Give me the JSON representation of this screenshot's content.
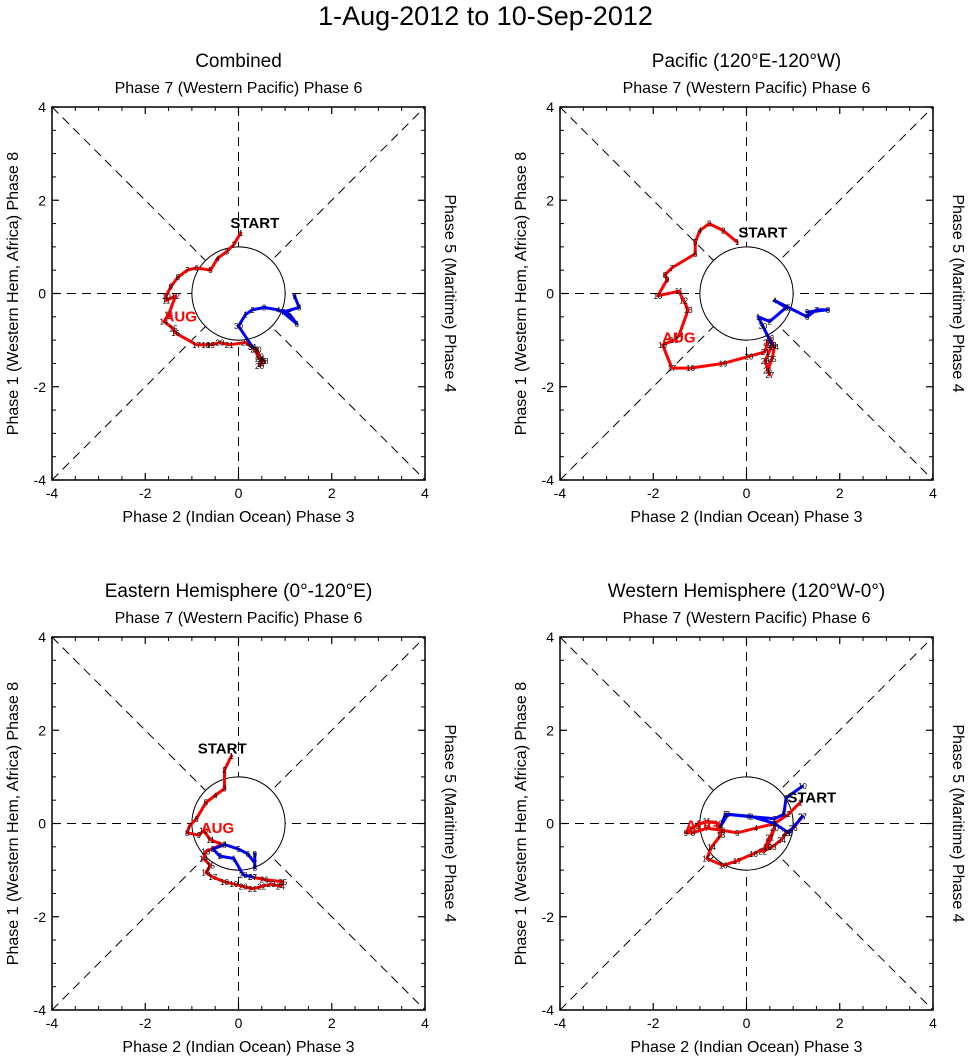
{
  "figure": {
    "title": "1-Aug-2012 to 10-Sep-2012"
  },
  "colors": {
    "august": "#ff0000",
    "september": "#0000ff",
    "axes": "#000000"
  },
  "chart_data": [
    {
      "type": "line",
      "title": "Combined",
      "top_label": "Phase 7 (Western Pacific) Phase 6",
      "bottom_label": "Phase 2 (Indian Ocean) Phase 3",
      "left_label": "Phase 1 (Western Hem, Africa) Phase 8",
      "right_label": "Phase 5 (Maritime) Phase 4",
      "xlim": [
        -4,
        4
      ],
      "ylim": [
        -4,
        4
      ],
      "xticks": [
        -4,
        -2,
        0,
        2,
        4
      ],
      "yticks": [
        -4,
        -2,
        0,
        2,
        4
      ],
      "tick_labels": [
        "-4",
        "-2",
        "0",
        "2",
        "4"
      ],
      "start_label": "START",
      "start_label_pos": [
        0.35,
        1.4
      ],
      "month_label": "AUG",
      "month_label_pos": [
        -1.25,
        -0.6
      ],
      "series": [
        {
          "name": "AUG",
          "color": "#ff0000",
          "x": [
            0.05,
            -0.1,
            -0.25,
            -0.45,
            -0.6,
            -0.9,
            -1.1,
            -1.3,
            -1.45,
            -1.55,
            -1.55,
            -1.35,
            -1.5,
            -1.6,
            -1.4,
            -1.35,
            -0.9,
            -0.7,
            -0.6,
            -0.4,
            -0.2,
            0.15,
            0.35,
            0.45,
            0.5,
            0.45,
            0.5,
            0.55,
            0.45,
            0.4,
            0.3
          ],
          "y": [
            1.3,
            1.05,
            0.9,
            0.75,
            0.5,
            0.55,
            0.5,
            0.35,
            0.15,
            -0.05,
            -0.15,
            -0.05,
            -0.45,
            -0.6,
            -0.75,
            -0.85,
            -1.1,
            -1.1,
            -1.1,
            -1.05,
            -1.1,
            -1.05,
            -1.2,
            -1.4,
            -1.45,
            -1.55,
            -1.5,
            -1.45,
            -1.35,
            -1.2,
            -1.15
          ],
          "point_labels": [
            "1",
            "2",
            "3",
            "4",
            "5",
            "6",
            "7",
            "8",
            "9",
            "10",
            "11",
            "12",
            "13",
            "14",
            "15",
            "16",
            "17",
            "18",
            "19",
            "20",
            "21",
            "22",
            "23",
            "24",
            "25",
            "26",
            "27",
            "28",
            "29",
            "30",
            "31"
          ]
        },
        {
          "name": "SEP",
          "color": "#0000ff",
          "x": [
            0.3,
            0.0,
            0.15,
            0.3,
            0.55,
            0.85,
            1.1,
            1.25,
            0.95,
            1.3,
            1.2
          ],
          "y": [
            -1.15,
            -0.7,
            -0.45,
            -0.35,
            -0.3,
            -0.35,
            -0.45,
            -0.65,
            -0.4,
            -0.3,
            -0.05
          ],
          "point_labels": [
            "31",
            "30",
            "1",
            "2",
            "3",
            "4",
            "5",
            "6",
            "7",
            "8",
            "9"
          ]
        }
      ]
    },
    {
      "type": "line",
      "title": "Pacific (120°E-120°W)",
      "top_label": "Phase 7 (Western Pacific) Phase 6",
      "bottom_label": "Phase 2 (Indian Ocean) Phase 3",
      "left_label": "Phase 1 (Western Hem, Africa) Phase 8",
      "right_label": "Phase 5 (Maritime) Phase 4",
      "xlim": [
        -4,
        4
      ],
      "ylim": [
        -4,
        4
      ],
      "xticks": [
        -4,
        -2,
        0,
        2,
        4
      ],
      "yticks": [
        -4,
        -2,
        0,
        2,
        4
      ],
      "tick_labels": [
        "-4",
        "-2",
        "0",
        "2",
        "4"
      ],
      "start_label": "START",
      "start_label_pos": [
        0.35,
        1.2
      ],
      "month_label": "AUG",
      "month_label_pos": [
        -1.45,
        -1.05
      ],
      "series": [
        {
          "name": "AUG",
          "color": "#ff0000",
          "x": [
            -0.2,
            -0.5,
            -0.8,
            -1.0,
            -1.1,
            -1.1,
            -1.6,
            -1.75,
            -1.7,
            -1.9,
            -1.45,
            -1.35,
            -1.25,
            -1.45,
            -1.55,
            -1.8,
            -1.6,
            -1.2,
            -0.5,
            0.05,
            0.4,
            0.45,
            0.5,
            0.6,
            0.55,
            0.45,
            0.5,
            0.4,
            0.55
          ],
          "y": [
            1.1,
            1.35,
            1.5,
            1.35,
            1.1,
            0.85,
            0.55,
            0.4,
            0.3,
            -0.05,
            0.05,
            -0.15,
            -0.35,
            -0.9,
            -1.0,
            -1.1,
            -1.6,
            -1.6,
            -1.5,
            -1.35,
            -1.25,
            -1.05,
            -0.95,
            -1.15,
            -1.4,
            -1.65,
            -1.75,
            -1.45,
            -1.1
          ],
          "point_labels": [
            "1",
            "2",
            "3",
            "4",
            "5",
            "6",
            "7",
            "8",
            "9",
            "10",
            "11",
            "12",
            "13",
            "14",
            "15",
            "16",
            "17",
            "18",
            "19",
            "20",
            "21",
            "22",
            "23",
            "24",
            "25",
            "26",
            "27",
            "28",
            "29"
          ]
        },
        {
          "name": "SEP",
          "color": "#0000ff",
          "x": [
            0.55,
            0.35,
            0.25,
            0.5,
            0.85,
            0.6,
            0.9,
            1.3,
            1.5,
            1.75,
            1.3
          ],
          "y": [
            -1.1,
            -0.7,
            -0.5,
            -0.6,
            -0.3,
            -0.15,
            -0.3,
            -0.5,
            -0.35,
            -0.35,
            -0.4
          ],
          "point_labels": [
            "29",
            "30",
            "1",
            "2",
            "3",
            "4",
            "5",
            "6",
            "7",
            "8",
            "9"
          ]
        }
      ]
    },
    {
      "type": "line",
      "title": "Eastern Hemisphere (0°-120°E)",
      "top_label": "Phase 7 (Western Pacific) Phase 6",
      "bottom_label": "Phase 2 (Indian Ocean) Phase 3",
      "left_label": "Phase 1 (Western Hem, Africa) Phase 8",
      "right_label": "Phase 5 (Maritime) Phase 4",
      "xlim": [
        -4,
        4
      ],
      "ylim": [
        -4,
        4
      ],
      "xticks": [
        -4,
        -2,
        0,
        2,
        4
      ],
      "yticks": [
        -4,
        -2,
        0,
        2,
        4
      ],
      "tick_labels": [
        "-4",
        "-2",
        "0",
        "2",
        "4"
      ],
      "start_label": "START",
      "start_label_pos": [
        -0.35,
        1.5
      ],
      "month_label": "AUG",
      "month_label_pos": [
        -0.45,
        -0.2
      ],
      "series": [
        {
          "name": "AUG",
          "color": "#ff0000",
          "x": [
            -0.15,
            -0.3,
            -0.3,
            -0.5,
            -0.7,
            -0.9,
            -1.05,
            -1.1,
            -0.85,
            -0.75,
            -0.6,
            -0.35,
            -0.7,
            -0.75,
            -0.6,
            -0.7,
            -0.55,
            -0.3,
            -0.1,
            0.1,
            0.3,
            0.5,
            0.7,
            0.9,
            0.95,
            0.55,
            0.3
          ],
          "y": [
            1.45,
            1.15,
            0.75,
            0.6,
            0.45,
            0.1,
            -0.05,
            -0.2,
            -0.25,
            -0.15,
            -0.35,
            -0.45,
            -0.6,
            -0.75,
            -0.9,
            -1.05,
            -1.15,
            -1.25,
            -1.3,
            -1.35,
            -1.4,
            -1.35,
            -1.3,
            -1.35,
            -1.25,
            -1.2,
            -1.15
          ],
          "point_labels": [
            "1",
            "2",
            "3",
            "4",
            "5",
            "6",
            "7",
            "8",
            "9",
            "10",
            "11",
            "12",
            "13",
            "14",
            "15",
            "16",
            "17",
            "18",
            "19",
            "20",
            "21",
            "22",
            "23",
            "24",
            "25",
            "26",
            "27"
          ]
        },
        {
          "name": "SEP",
          "color": "#0000ff",
          "x": [
            0.3,
            0.1,
            -0.1,
            -0.4,
            -0.55,
            -0.3,
            0.0,
            0.2,
            0.35,
            0.35,
            0.35
          ],
          "y": [
            -1.15,
            -1.1,
            -0.75,
            -0.7,
            -0.55,
            -0.45,
            -0.55,
            -0.65,
            -0.85,
            -0.95,
            -0.65
          ],
          "point_labels": [
            "27",
            "28",
            "1",
            "2",
            "3",
            "4",
            "5",
            "6",
            "7",
            "8",
            "9"
          ]
        }
      ]
    },
    {
      "type": "line",
      "title": "Western Hemisphere (120°W-0°)",
      "top_label": "Phase 7 (Western Pacific) Phase 6",
      "bottom_label": "Phase 2 (Indian Ocean) Phase 3",
      "left_label": "Phase 1 (Western Hem, Africa) Phase 8",
      "right_label": "Phase 5 (Maritime) Phase 4",
      "xlim": [
        -4,
        4
      ],
      "ylim": [
        -4,
        4
      ],
      "xticks": [
        -4,
        -2,
        0,
        2,
        4
      ],
      "yticks": [
        -4,
        -2,
        0,
        2,
        4
      ],
      "tick_labels": [
        "-4",
        "-2",
        "0",
        "2",
        "4"
      ],
      "start_label": "START",
      "start_label_pos": [
        1.4,
        0.45
      ],
      "month_label": "AUG",
      "month_label_pos": [
        -0.95,
        -0.15
      ],
      "series": [
        {
          "name": "AUG",
          "color": "#ff0000",
          "x": [
            1.15,
            0.9,
            0.6,
            0.2,
            -0.2,
            -0.5,
            -0.85,
            -1.15,
            -1.3,
            -1.1,
            -0.85,
            -0.6,
            -0.55,
            -0.75,
            -0.85,
            -0.5,
            -0.2,
            0.15,
            0.45,
            0.6,
            0.5,
            0.35,
            0.55,
            0.75,
            0.85,
            1.0,
            1.2
          ],
          "y": [
            0.45,
            0.2,
            0.0,
            -0.1,
            -0.2,
            -0.15,
            -0.1,
            -0.2,
            -0.2,
            -0.05,
            0.05,
            0.0,
            -0.25,
            -0.5,
            -0.75,
            -0.9,
            -0.8,
            -0.65,
            -0.5,
            -0.1,
            -0.3,
            -0.6,
            -0.5,
            -0.35,
            -0.2,
            -0.1,
            0.15
          ],
          "point_labels": [
            "1",
            "2",
            "3",
            "4",
            "5",
            "6",
            "7",
            "8",
            "9",
            "10",
            "11",
            "12",
            "13",
            "14",
            "15",
            "16",
            "17",
            "18",
            "19",
            "20",
            "21",
            "22",
            "23",
            "24",
            "25",
            "26",
            "27"
          ]
        },
        {
          "name": "SEP",
          "color": "#0000ff",
          "x": [
            1.2,
            0.9,
            0.6,
            0.1,
            -0.4,
            -0.55,
            -0.45,
            0.05,
            0.6,
            0.8,
            0.85,
            1.2
          ],
          "y": [
            0.15,
            -0.2,
            0.0,
            0.15,
            0.2,
            -0.05,
            0.2,
            0.15,
            0.1,
            0.2,
            0.55,
            0.8
          ],
          "point_labels": [
            "27",
            "28",
            "1",
            "2",
            "3",
            "4",
            "5",
            "6",
            "7",
            "8",
            "9",
            "10"
          ]
        }
      ]
    }
  ]
}
